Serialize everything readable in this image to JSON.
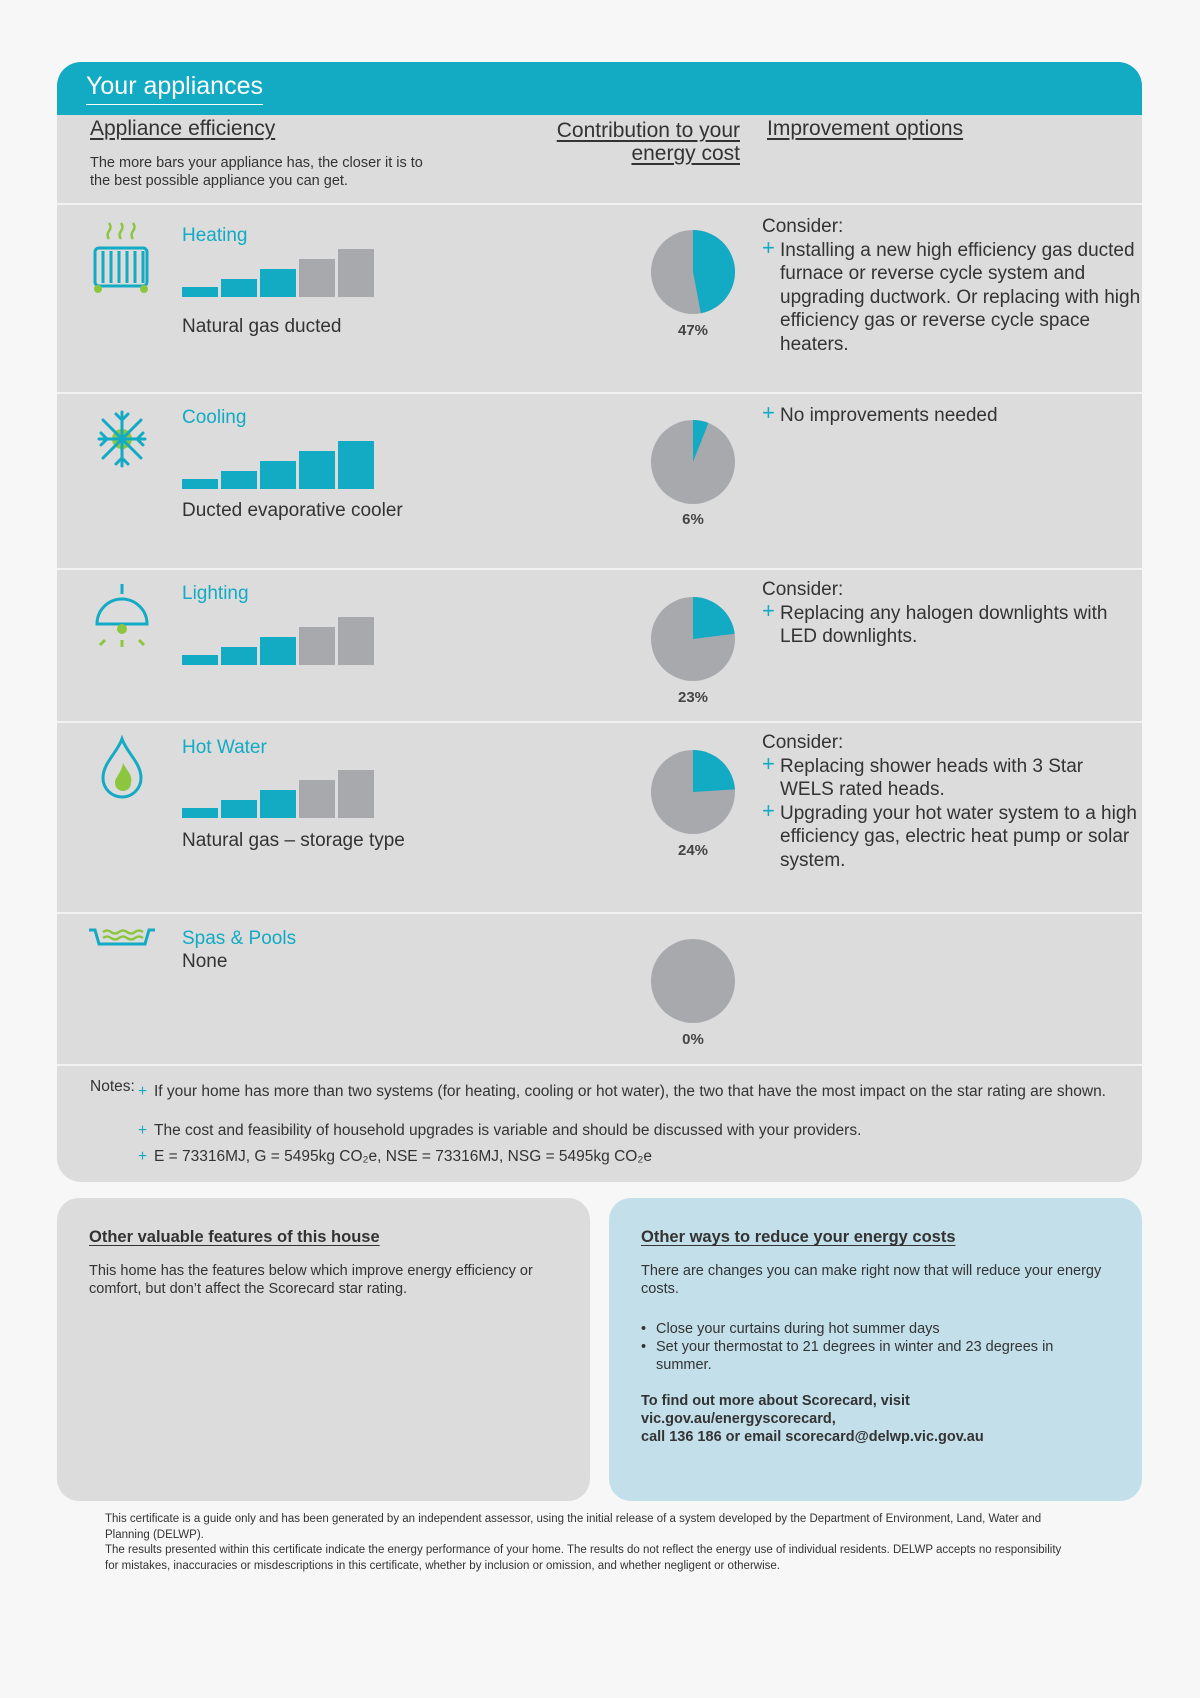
{
  "header": {
    "title": "Your appliances"
  },
  "columns": {
    "efficiency_title": "Appliance efficiency",
    "efficiency_sub": "The more bars your appliance has, the closer it is to the best possible appliance you can get.",
    "contribution_line1": "Contribution to your",
    "contribution_line2": "energy cost",
    "improvement_title": "Improvement options"
  },
  "appliances": [
    {
      "name": "Heating",
      "desc": "Natural gas ducted",
      "bars_filled": 3,
      "percent_label": "47%",
      "percent": 47,
      "improvements": {
        "consider": "Consider:",
        "items": [
          "Installing a new high efficiency gas ducted furnace or reverse cycle system and upgrading ductwork. Or replacing with high efficiency gas or reverse cycle space heaters."
        ]
      }
    },
    {
      "name": "Cooling",
      "desc": "Ducted evaporative cooler",
      "bars_filled": 5,
      "percent_label": "6%",
      "percent": 6,
      "improvements": {
        "consider": "",
        "items": [
          "No improvements needed"
        ]
      }
    },
    {
      "name": "Lighting",
      "desc": "",
      "bars_filled": 3,
      "percent_label": "23%",
      "percent": 23,
      "improvements": {
        "consider": "Consider:",
        "items": [
          "Replacing any halogen downlights with LED downlights."
        ]
      }
    },
    {
      "name": "Hot Water",
      "desc": "Natural gas – storage type",
      "bars_filled": 3,
      "percent_label": "24%",
      "percent": 24,
      "improvements": {
        "consider": "Consider:",
        "items": [
          "Replacing shower heads with 3 Star WELS rated heads.",
          "Upgrading your hot water system to a high efficiency gas, electric heat pump or solar system."
        ]
      }
    },
    {
      "name": "Spas & Pools",
      "desc": "None",
      "bars_filled": 0,
      "percent_label": "0%",
      "percent": 0,
      "improvements": {
        "consider": "",
        "items": []
      }
    }
  ],
  "notes": {
    "label": "Notes:",
    "items": [
      "If your home has more than two systems (for heating, cooling or hot water), the two that have the most impact on the star rating are shown.",
      "The cost and feasibility of household upgrades is variable and should be discussed with your providers.",
      "E = 73316MJ, G = 5495kg CO₂e, NSE = 73316MJ, NSG = 5495kg CO₂e"
    ]
  },
  "features_box": {
    "title": "Other valuable features of this house",
    "text": "This home has the features below which improve energy efficiency or comfort, but don’t affect the Scorecard star rating."
  },
  "reduce_box": {
    "title": "Other ways to reduce your energy costs",
    "text": "There are changes you can make right now that will reduce your energy costs.",
    "tips": [
      "Close your curtains during hot summer days",
      "Set your thermostat to 21 degrees in winter and 23 degrees in summer."
    ],
    "find_line1": "To find out more about Scorecard, visit",
    "find_line2": "vic.gov.au/energyscorecard,",
    "find_line3": "call 136 186 or email scorecard@delwp.vic.gov.au"
  },
  "disclaimer": {
    "line1": "This certificate is a guide only and has been generated by an independent assessor, using the initial release of a system developed by the Department of Environment, Land, Water and Planning (DELWP).",
    "line2": "The results presented within this certificate indicate the energy performance of your home. The results do not reflect the energy use of individual residents. DELWP accepts no responsibility for mistakes, inaccuracies or misdescriptions in this certificate, whether by inclusion or omission, and whether negligent or otherwise."
  },
  "colors": {
    "accent": "#13aac4",
    "grey_bar": "#a7a9ac",
    "green": "#8cc63f",
    "card": "#dcdcdd",
    "blue_box": "#c3dfea"
  }
}
